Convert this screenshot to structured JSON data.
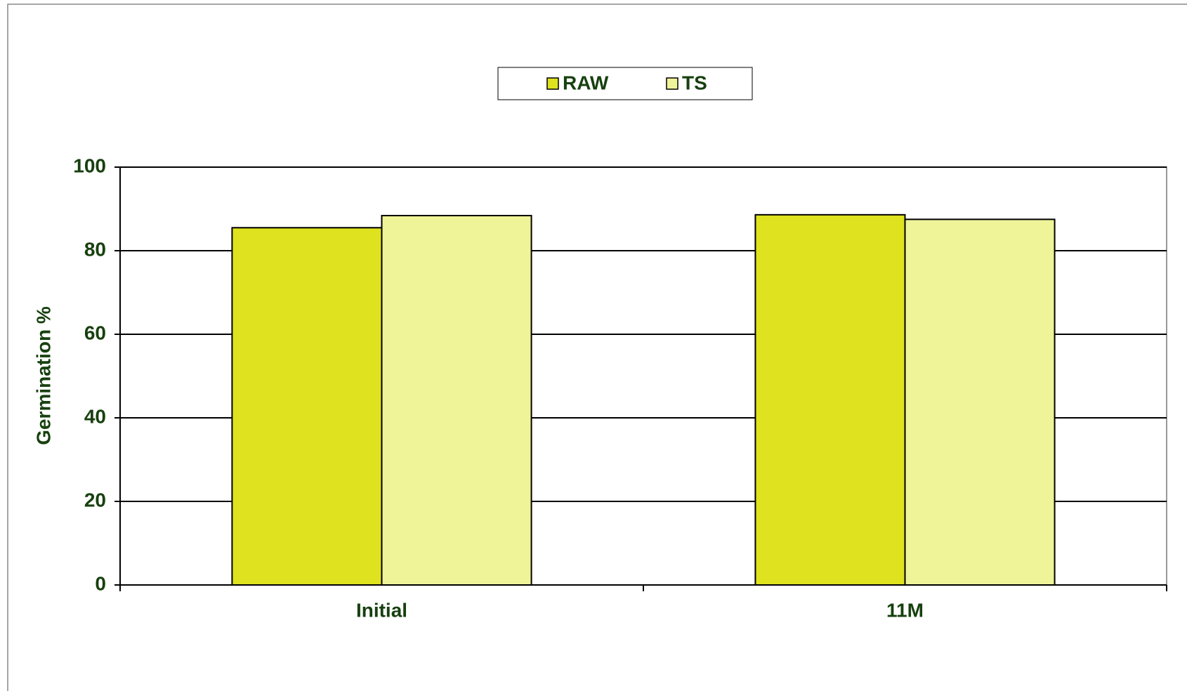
{
  "chart_data": {
    "type": "bar",
    "ylabel": "Germination %",
    "categories": [
      "Initial",
      "11M"
    ],
    "series": [
      {
        "name": "RAW",
        "color": "#dfe21e",
        "values": [
          85.5,
          88.6
        ]
      },
      {
        "name": "TS",
        "color": "#eff498",
        "values": [
          88.4,
          87.5
        ]
      }
    ],
    "ylim": [
      0,
      100
    ],
    "yticks": [
      0,
      20,
      40,
      60,
      80,
      100
    ],
    "grid": true,
    "legend": "top"
  }
}
